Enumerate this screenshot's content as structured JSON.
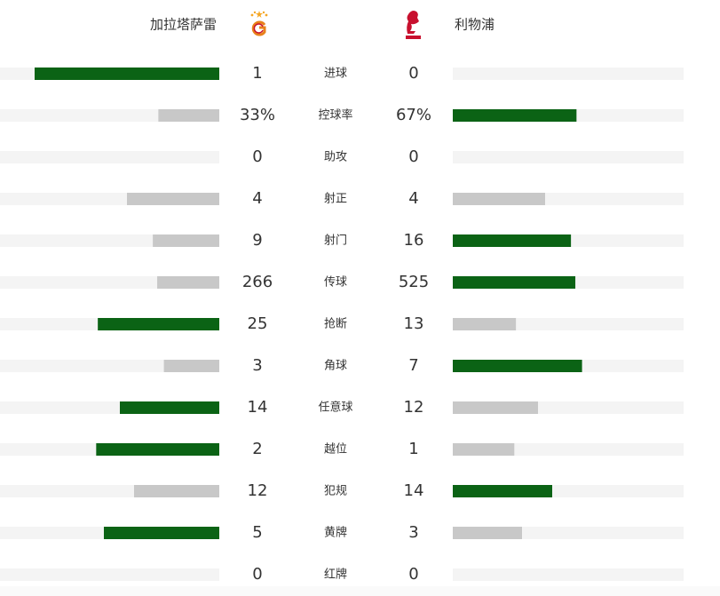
{
  "header": {
    "home_team": "加拉塔萨雷",
    "away_team": "利物浦"
  },
  "bar_colors": {
    "leader": "#0b6315",
    "other": "#c8c8c8",
    "track": "#f4f4f4"
  },
  "stats": [
    {
      "label": "进球",
      "home": 1,
      "away": 0
    },
    {
      "label": "控球率",
      "home": 33,
      "away": 67,
      "home_label": "33%",
      "away_label": "67%"
    },
    {
      "label": "助攻",
      "home": 0,
      "away": 0
    },
    {
      "label": "射正",
      "home": 4,
      "away": 4
    },
    {
      "label": "射门",
      "home": 9,
      "away": 16
    },
    {
      "label": "传球",
      "home": 266,
      "away": 525
    },
    {
      "label": "抢断",
      "home": 25,
      "away": 13
    },
    {
      "label": "角球",
      "home": 3,
      "away": 7
    },
    {
      "label": "任意球",
      "home": 14,
      "away": 12
    },
    {
      "label": "越位",
      "home": 2,
      "away": 1
    },
    {
      "label": "犯规",
      "home": 12,
      "away": 14
    },
    {
      "label": "黄牌",
      "home": 5,
      "away": 3
    },
    {
      "label": "红牌",
      "home": 0,
      "away": 0
    }
  ]
}
